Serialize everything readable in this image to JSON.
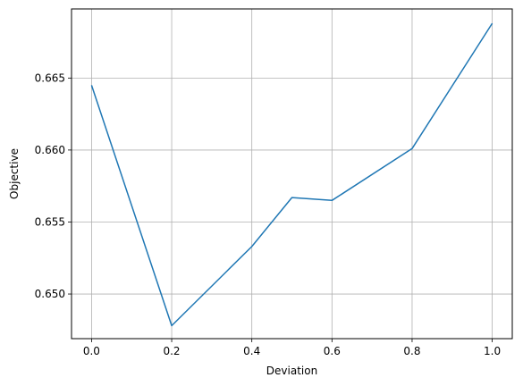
{
  "chart_data": {
    "type": "line",
    "title": "",
    "xlabel": "Deviation",
    "ylabel": "Objective",
    "xlim": [
      -0.05,
      1.05
    ],
    "ylim": [
      0.6469,
      0.6698
    ],
    "xticks": [
      0.0,
      0.2,
      0.4,
      0.6,
      0.8,
      1.0
    ],
    "xtick_labels": [
      "0.0",
      "0.2",
      "0.4",
      "0.6",
      "0.8",
      "1.0"
    ],
    "yticks": [
      0.65,
      0.655,
      0.66,
      0.665
    ],
    "ytick_labels": [
      "0.650",
      "0.655",
      "0.660",
      "0.665"
    ],
    "grid": true,
    "legend": "none",
    "series": [
      {
        "color": "#1f77b4",
        "x": [
          0.0,
          0.2,
          0.4,
          0.5,
          0.6,
          0.8,
          1.0
        ],
        "y": [
          0.6645,
          0.6478,
          0.6533,
          0.6567,
          0.6565,
          0.6601,
          0.6688
        ]
      }
    ]
  }
}
